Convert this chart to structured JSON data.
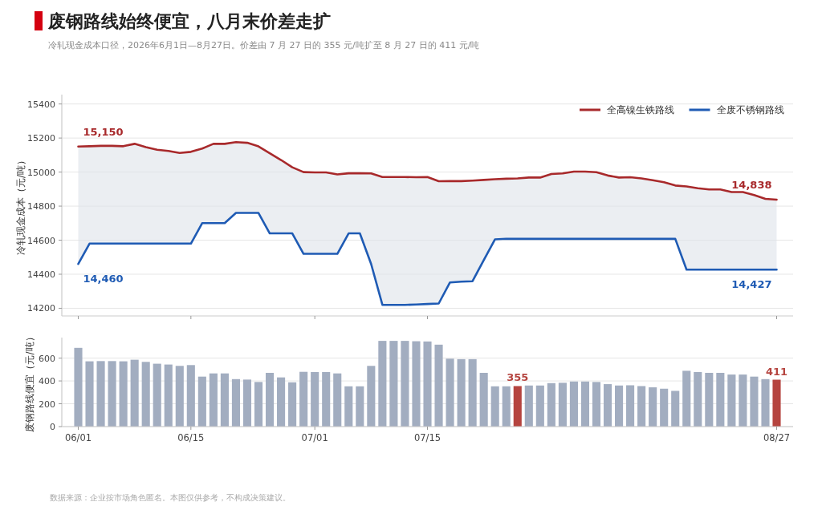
{
  "chart_data": [
    {
      "type": "line",
      "title": "废钢路线始终便宜，八月末价差走扩",
      "subtitle": "冷轧现金成本口径，2026年6月1日—8月27日。价差由 7 月 27 日的 355 元/吨扩至 8 月 27 日的 411 元/吨",
      "ylabel": "冷轧现金成本（元/吨）",
      "categories": [
        null,
        null,
        null,
        null,
        null,
        null,
        null,
        null,
        null,
        null,
        null,
        null,
        null,
        null,
        null,
        null,
        null,
        null,
        null,
        null,
        null,
        null,
        null,
        null,
        null,
        null,
        null,
        null,
        null,
        null,
        null,
        null,
        null,
        null,
        null,
        null,
        null,
        null,
        null,
        null,
        null,
        null,
        null,
        null,
        null,
        null,
        null,
        null,
        null,
        null,
        null,
        null,
        null,
        null,
        null,
        null,
        null,
        null,
        null,
        null,
        null,
        null,
        null
      ],
      "series": [
        {
          "name": "全高镍生铁路线",
          "color": "#a8292b",
          "values": [
            15150,
            15152,
            15154,
            15154,
            15152,
            15166,
            15147,
            15131,
            15124,
            15112,
            15119,
            15138,
            15166,
            15166,
            15176,
            15172,
            15151,
            15111,
            15071,
            15028,
            15000,
            14998,
            14998,
            14986,
            14993,
            14993,
            14992,
            14971,
            14971,
            14971,
            14970,
            14971,
            14946,
            14947,
            14947,
            14950,
            14954,
            14958,
            14961,
            14963,
            14968,
            14968,
            14989,
            14992,
            15003,
            15003,
            14999,
            14980,
            14968,
            14970,
            14963,
            14952,
            14940,
            14921,
            14916,
            14905,
            14898,
            14898,
            14883,
            14883,
            14865,
            14843,
            14838
          ],
          "lower": [
            14460,
            14580,
            14580,
            14580,
            14580,
            14580,
            14580,
            14580,
            14580,
            14580,
            14580,
            14700,
            14700,
            14700,
            14760,
            14760,
            14760,
            14640,
            14640,
            14640,
            14520,
            14520,
            14520,
            14520,
            14640,
            14640,
            14460,
            14220,
            14220,
            14220,
            14222,
            14225,
            14228,
            14352,
            14356,
            14359,
            14483,
            14605,
            14608,
            14608,
            14608,
            14608,
            14608,
            14608,
            14608,
            14608,
            14608,
            14608,
            14608,
            14608,
            14608,
            14608,
            14608,
            14608,
            14427,
            14427,
            14427,
            14427,
            14427,
            14427,
            14427,
            14427,
            14427
          ],
          "upper": [
            15150,
            15152,
            15154,
            15154,
            15152,
            15166,
            15147,
            15131,
            15124,
            15112,
            15119,
            15138,
            15166,
            15166,
            15176,
            15172,
            15151,
            15111,
            15071,
            15028,
            15000,
            14998,
            14998,
            14986,
            14993,
            14993,
            14992,
            14971,
            14971,
            14971,
            14970,
            14971,
            14946,
            14947,
            14947,
            14950,
            14954,
            14958,
            14961,
            14963,
            14968,
            14968,
            14989,
            14992,
            15003,
            15003,
            14999,
            14980,
            14968,
            14970,
            14963,
            14952,
            14940,
            14921,
            14916,
            14905,
            14898,
            14898,
            14883,
            14883,
            14865,
            14843,
            14838
          ],
          "value_labels": [
            "15,150",
            null,
            null,
            null,
            null,
            null,
            null,
            null,
            null,
            null,
            null,
            null,
            null,
            null,
            null,
            null,
            null,
            null,
            null,
            null,
            null,
            null,
            null,
            null,
            null,
            null,
            null,
            null,
            null,
            null,
            null,
            null,
            null,
            null,
            null,
            null,
            null,
            null,
            null,
            null,
            null,
            null,
            null,
            null,
            null,
            null,
            null,
            null,
            null,
            null,
            null,
            null,
            null,
            null,
            null,
            null,
            null,
            null,
            null,
            null,
            null,
            null,
            "14,838"
          ]
        },
        {
          "name": "全废不锈钢路线",
          "color": "#1f5bb4",
          "values": [
            14460,
            14580,
            14580,
            14580,
            14580,
            14580,
            14580,
            14580,
            14580,
            14580,
            14580,
            14700,
            14700,
            14700,
            14760,
            14760,
            14760,
            14640,
            14640,
            14640,
            14520,
            14520,
            14520,
            14520,
            14640,
            14640,
            14460,
            14220,
            14220,
            14220,
            14222,
            14225,
            14228,
            14352,
            14356,
            14359,
            14483,
            14605,
            14608,
            14608,
            14608,
            14608,
            14608,
            14608,
            14608,
            14608,
            14608,
            14608,
            14608,
            14608,
            14608,
            14608,
            14608,
            14608,
            14427,
            14427,
            14427,
            14427,
            14427,
            14427,
            14427,
            14427,
            14427
          ],
          "value_labels": [
            "14,460",
            null,
            null,
            null,
            null,
            null,
            null,
            null,
            null,
            null,
            null,
            null,
            null,
            null,
            null,
            null,
            null,
            null,
            null,
            null,
            null,
            null,
            null,
            null,
            null,
            null,
            null,
            null,
            null,
            null,
            null,
            null,
            null,
            null,
            null,
            null,
            null,
            null,
            null,
            null,
            null,
            null,
            null,
            null,
            null,
            null,
            null,
            null,
            null,
            null,
            null,
            null,
            null,
            null,
            null,
            null,
            null,
            null,
            null,
            null,
            null,
            null,
            "14,427"
          ]
        }
      ],
      "ylim": [
        14155,
        15455
      ],
      "yticks": [
        14200,
        14400,
        14600,
        14800,
        15000,
        15200,
        15400
      ],
      "grid": "y",
      "legend": "top right",
      "tick_labels": "y"
    },
    {
      "type": "bar",
      "ylabel": "废钢路线便宜（元/吨）",
      "categories": [
        "06/01",
        null,
        null,
        null,
        null,
        null,
        null,
        null,
        null,
        null,
        "06/15",
        null,
        null,
        null,
        null,
        null,
        null,
        null,
        null,
        null,
        null,
        "07/01",
        null,
        null,
        null,
        null,
        null,
        null,
        null,
        null,
        null,
        "07/15",
        null,
        null,
        null,
        null,
        null,
        null,
        null,
        null,
        null,
        null,
        null,
        null,
        null,
        null,
        null,
        null,
        null,
        null,
        null,
        null,
        null,
        null,
        null,
        null,
        null,
        null,
        null,
        null,
        null,
        null,
        "08/27"
      ],
      "values": [
        690,
        572,
        574,
        574,
        572,
        586,
        567,
        551,
        544,
        532,
        539,
        438,
        466,
        466,
        416,
        412,
        391,
        471,
        431,
        388,
        480,
        478,
        478,
        466,
        353,
        353,
        532,
        751,
        751,
        751,
        748,
        746,
        718,
        595,
        591,
        591,
        471,
        353,
        353,
        355,
        360,
        360,
        381,
        384,
        395,
        395,
        391,
        372,
        360,
        362,
        355,
        344,
        332,
        313,
        489,
        478,
        471,
        471,
        456,
        456,
        438,
        416,
        411
      ],
      "colors": [
        "#a2adc0",
        "#a2adc0",
        "#a2adc0",
        "#a2adc0",
        "#a2adc0",
        "#a2adc0",
        "#a2adc0",
        "#a2adc0",
        "#a2adc0",
        "#a2adc0",
        "#a2adc0",
        "#a2adc0",
        "#a2adc0",
        "#a2adc0",
        "#a2adc0",
        "#a2adc0",
        "#a2adc0",
        "#a2adc0",
        "#a2adc0",
        "#a2adc0",
        "#a2adc0",
        "#a2adc0",
        "#a2adc0",
        "#a2adc0",
        "#a2adc0",
        "#a2adc0",
        "#a2adc0",
        "#a2adc0",
        "#a2adc0",
        "#a2adc0",
        "#a2adc0",
        "#a2adc0",
        "#a2adc0",
        "#a2adc0",
        "#a2adc0",
        "#a2adc0",
        "#a2adc0",
        "#a2adc0",
        "#a2adc0",
        "#b5443f",
        "#a2adc0",
        "#a2adc0",
        "#a2adc0",
        "#a2adc0",
        "#a2adc0",
        "#a2adc0",
        "#a2adc0",
        "#a2adc0",
        "#a2adc0",
        "#a2adc0",
        "#a2adc0",
        "#a2adc0",
        "#a2adc0",
        "#a2adc0",
        "#a2adc0",
        "#a2adc0",
        "#a2adc0",
        "#a2adc0",
        "#a2adc0",
        "#a2adc0",
        "#a2adc0",
        "#a2adc0",
        "#b5443f"
      ],
      "value_labels": [
        null,
        null,
        null,
        null,
        null,
        null,
        null,
        null,
        null,
        null,
        null,
        null,
        null,
        null,
        null,
        null,
        null,
        null,
        null,
        null,
        null,
        null,
        null,
        null,
        null,
        null,
        null,
        null,
        null,
        null,
        null,
        null,
        null,
        null,
        null,
        null,
        null,
        null,
        null,
        "355",
        null,
        null,
        null,
        null,
        null,
        null,
        null,
        null,
        null,
        null,
        null,
        null,
        null,
        null,
        null,
        null,
        null,
        null,
        null,
        null,
        null,
        null,
        "411"
      ],
      "ylim": [
        0,
        780
      ],
      "yticks": [
        0,
        200,
        400,
        600
      ],
      "grid": "y",
      "annotations": [
        "数据来源：企业按市场角色匿名。本图仅供参考，不构成决策建议。"
      ]
    }
  ]
}
